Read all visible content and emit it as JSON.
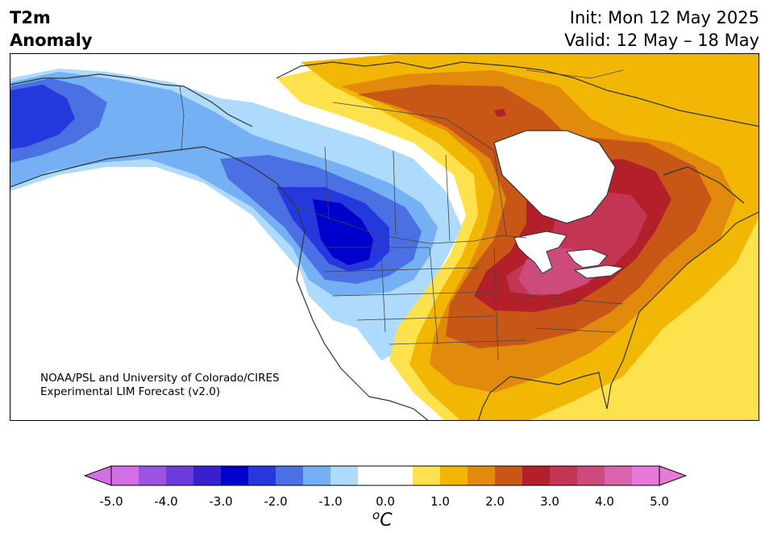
{
  "header": {
    "title_line1": "T2m",
    "title_line2": "Anomaly",
    "init": "Init: Mon 12 May 2025",
    "valid": "Valid: 12 May – 18 May"
  },
  "credit": {
    "line1": "NOAA/PSL and University of Colorado/CIRES",
    "line2": "Experimental LIM Forecast (v2.0)"
  },
  "colorbar": {
    "unit_main": "C",
    "unit_sup": "o",
    "tick_labels": [
      "-5.0",
      "-4.0",
      "-3.0",
      "-2.0",
      "-1.0",
      "0.0",
      "1.0",
      "2.0",
      "3.0",
      "4.0",
      "5.0"
    ],
    "range": [
      -5.0,
      5.0
    ],
    "step": 0.5,
    "colors": [
      "#d36ee5",
      "#9d52e0",
      "#6b3bd9",
      "#3a1fd0",
      "#0000cc",
      "#2438dd",
      "#4a70e4",
      "#75b0f4",
      "#aedbfb",
      "#ffffff",
      "#ffffff",
      "#fde24e",
      "#f2b705",
      "#e18a0b",
      "#c85617",
      "#b3202a",
      "#c33552",
      "#cd4b7c",
      "#d764ad",
      "#e779d9"
    ],
    "extend_low_color": "#d36ee5",
    "extend_high_color": "#e779d9"
  },
  "map": {
    "projection": "Lambert Conformal",
    "region": "North America",
    "field": "2m temperature anomaly",
    "units": "degC"
  }
}
